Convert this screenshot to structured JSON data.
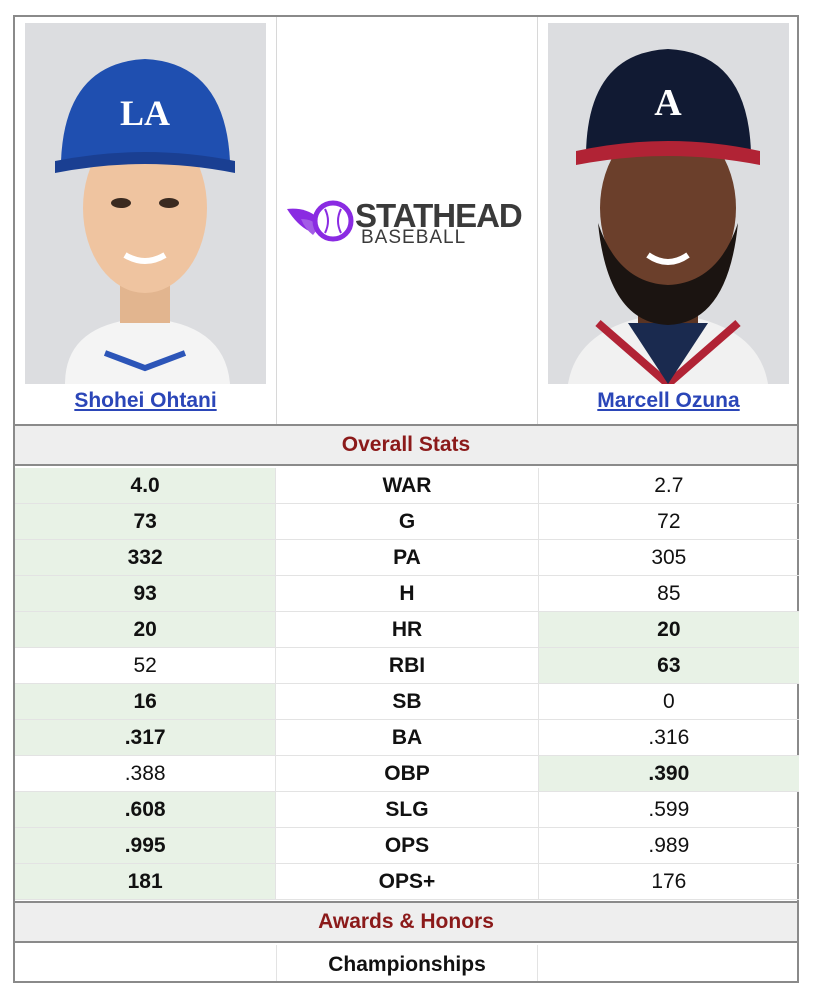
{
  "players": {
    "left": {
      "name": "Shohei Ohtani",
      "cap_logo": "LA"
    },
    "right": {
      "name": "Marcell Ozuna",
      "cap_logo": "A"
    }
  },
  "logo": {
    "line1": "STATHEAD",
    "line2": "BASEBALL",
    "icon": "baseball-wing-icon"
  },
  "colors": {
    "link": "#2b46b8",
    "section_title": "#8b1a1a",
    "highlight": "#e8f2e6"
  },
  "sections": {
    "overall": "Overall Stats",
    "awards": "Awards & Honors"
  },
  "stats": [
    {
      "label": "WAR",
      "left": "4.0",
      "right": "2.7",
      "leader": "left"
    },
    {
      "label": "G",
      "left": "73",
      "right": "72",
      "leader": "left"
    },
    {
      "label": "PA",
      "left": "332",
      "right": "305",
      "leader": "left"
    },
    {
      "label": "H",
      "left": "93",
      "right": "85",
      "leader": "left"
    },
    {
      "label": "HR",
      "left": "20",
      "right": "20",
      "leader": "both"
    },
    {
      "label": "RBI",
      "left": "52",
      "right": "63",
      "leader": "right"
    },
    {
      "label": "SB",
      "left": "16",
      "right": "0",
      "leader": "left"
    },
    {
      "label": "BA",
      "left": ".317",
      "right": ".316",
      "leader": "left"
    },
    {
      "label": "OBP",
      "left": ".388",
      "right": ".390",
      "leader": "right"
    },
    {
      "label": "SLG",
      "left": ".608",
      "right": ".599",
      "leader": "left"
    },
    {
      "label": "OPS",
      "left": ".995",
      "right": ".989",
      "leader": "left"
    },
    {
      "label": "OPS+",
      "left": "181",
      "right": "176",
      "leader": "left"
    }
  ],
  "awards": {
    "row1_label": "Championships"
  }
}
